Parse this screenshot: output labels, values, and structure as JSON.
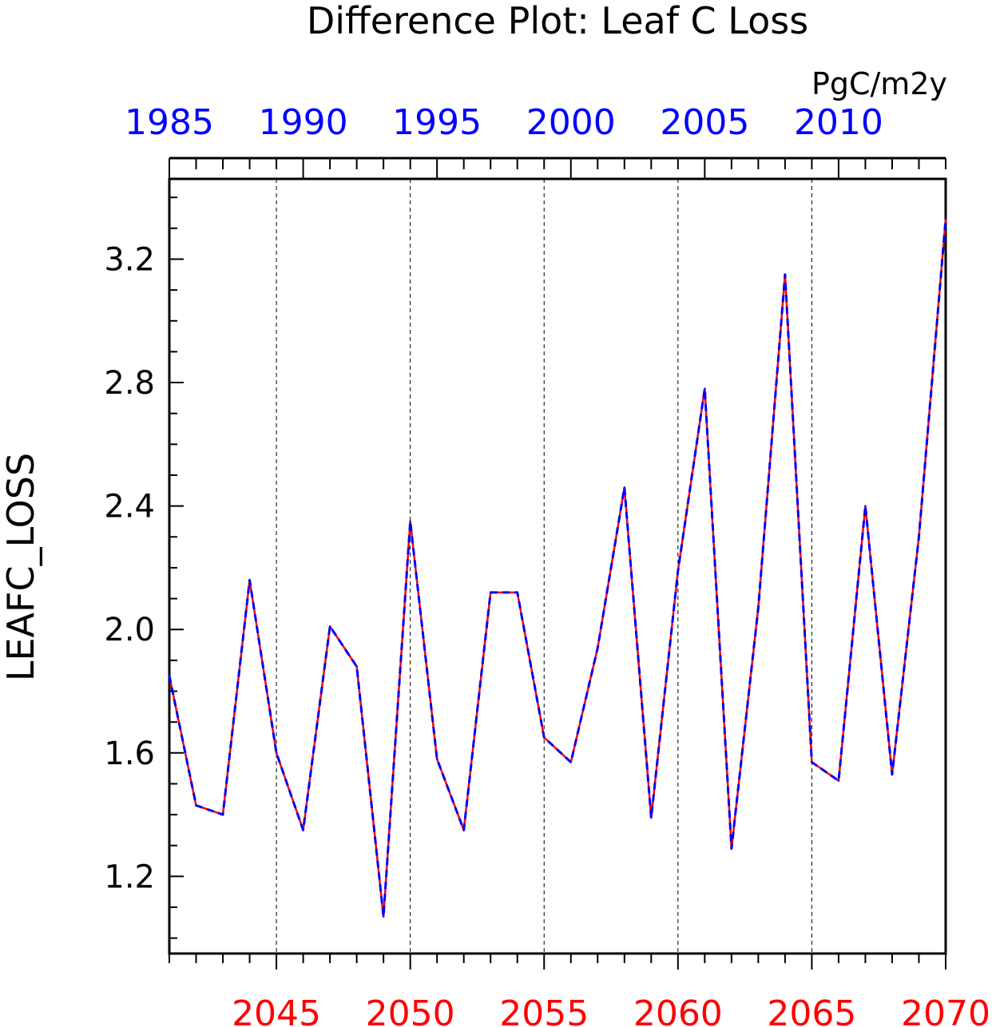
{
  "chart_data": {
    "type": "line",
    "title": "Difference Plot: Leaf C Loss",
    "units": "PgC/m2y",
    "ylabel": "LEAFC_LOSS",
    "ylim": [
      0.95,
      3.46
    ],
    "yticks": [
      1.2,
      1.6,
      2.0,
      2.4,
      2.8,
      3.2
    ],
    "ytick_labels": [
      "1.2",
      "1.6",
      "2.0",
      "2.4",
      "2.8",
      "3.2"
    ],
    "x_bottom": {
      "range": [
        2041,
        2070
      ],
      "ticks": [
        2045,
        2050,
        2055,
        2060,
        2065,
        2070
      ],
      "tick_labels": [
        "2045",
        "2050",
        "2055",
        "2060",
        "2065",
        "2070"
      ],
      "color": "#ff0000"
    },
    "x_top": {
      "range": [
        1985,
        2014
      ],
      "ticks": [
        1985,
        1990,
        1995,
        2000,
        2005,
        2010
      ],
      "tick_labels": [
        "1985",
        "1990",
        "1995",
        "2000",
        "2005",
        "2010"
      ],
      "color": "#0000ff"
    },
    "grid": "vertical dashed at bottom-axis major ticks",
    "x": [
      2041,
      2042,
      2043,
      2044,
      2045,
      2046,
      2047,
      2048,
      2049,
      2050,
      2051,
      2052,
      2053,
      2054,
      2055,
      2056,
      2057,
      2058,
      2059,
      2060,
      2061,
      2062,
      2063,
      2064,
      2065,
      2066,
      2067,
      2068,
      2069,
      2070
    ],
    "series": [
      {
        "color": "#ff0000",
        "style": "solid",
        "values": [
          1.85,
          1.43,
          1.4,
          2.16,
          1.6,
          1.35,
          2.01,
          1.88,
          1.07,
          2.35,
          1.58,
          1.35,
          2.12,
          2.12,
          1.65,
          1.57,
          1.94,
          2.46,
          1.39,
          2.19,
          2.78,
          1.29,
          2.07,
          3.15,
          1.57,
          1.51,
          2.4,
          1.53,
          2.3,
          3.33
        ]
      },
      {
        "color": "#0000ff",
        "style": "dashed",
        "values": [
          1.85,
          1.43,
          1.4,
          2.16,
          1.6,
          1.35,
          2.01,
          1.88,
          1.07,
          2.35,
          1.58,
          1.35,
          2.12,
          2.12,
          1.65,
          1.57,
          1.94,
          2.46,
          1.39,
          2.19,
          2.78,
          1.29,
          2.07,
          3.15,
          1.57,
          1.51,
          2.4,
          1.53,
          2.3,
          3.33
        ]
      }
    ]
  }
}
